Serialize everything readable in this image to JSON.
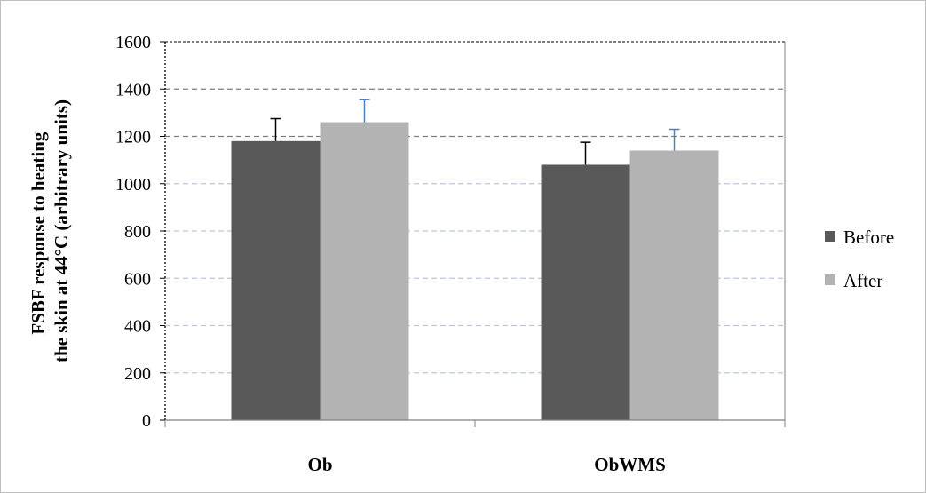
{
  "chart_data": {
    "type": "bar",
    "categories": [
      "Ob",
      "ObWMS"
    ],
    "ylabel_lines": [
      "FSBF response to heating",
      "the skin at 44°C (arbitrary units)"
    ],
    "ylim": [
      0,
      1600
    ],
    "yticks": [
      0,
      200,
      400,
      600,
      800,
      1000,
      1200,
      1400,
      1600
    ],
    "legend_position": "right",
    "series": [
      {
        "name": "Before",
        "color": "#595959",
        "error_color": "#000000",
        "values": [
          1180,
          1080
        ],
        "errors": [
          95,
          95
        ]
      },
      {
        "name": "After",
        "color": "#b3b3b3",
        "error_color": "#4f81bd",
        "values": [
          1260,
          1140
        ],
        "errors": [
          95,
          90
        ]
      }
    ]
  }
}
